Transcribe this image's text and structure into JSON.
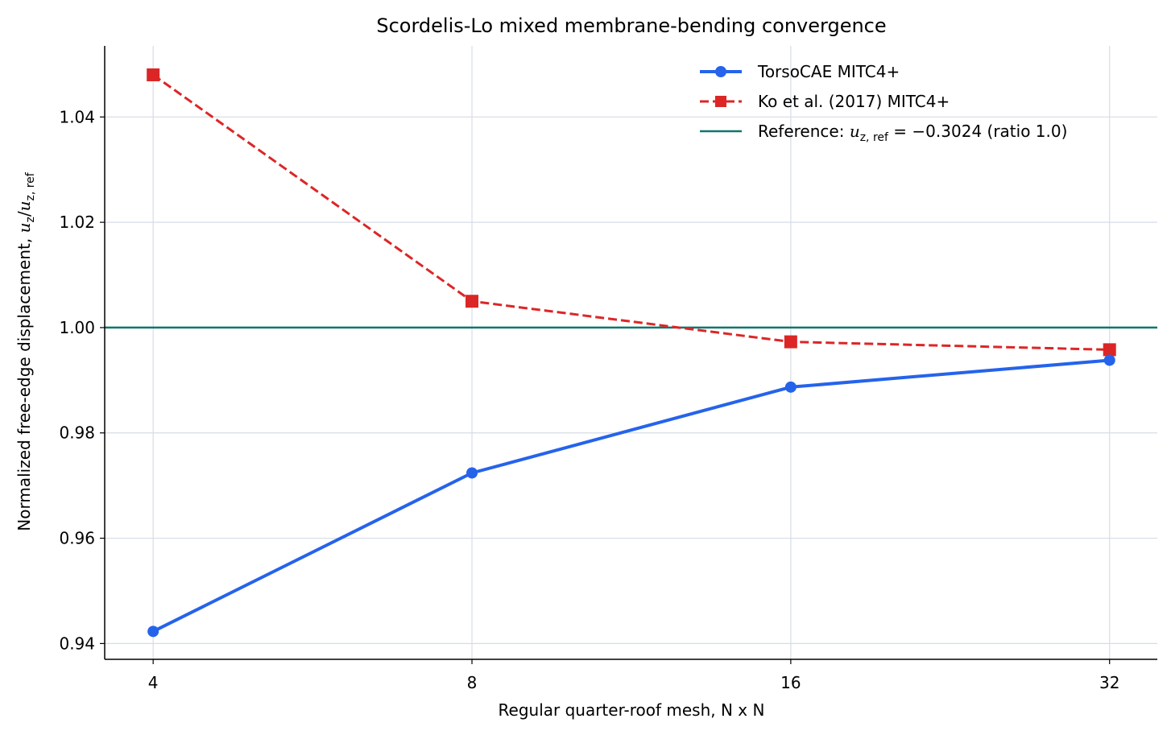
{
  "chart_data": {
    "type": "line",
    "title": "Scordelis-Lo mixed membrane-bending convergence",
    "xlabel": "Regular quarter-roof mesh, N x N",
    "ylabel": {
      "prefix": "Normalized free-edge displacement, ",
      "u": "u",
      "sub_z": "z",
      "slash": "/",
      "sub_zref": "z, ref"
    },
    "x_scale": "log2",
    "categories": [
      "4",
      "8",
      "16",
      "32"
    ],
    "x": [
      4,
      8,
      16,
      32
    ],
    "xlim": [
      3.6,
      35.5
    ],
    "ylim": [
      0.937,
      1.0535
    ],
    "yticks": [
      0.94,
      0.96,
      0.98,
      1.0,
      1.02,
      1.04
    ],
    "ytick_labels": [
      "0.94",
      "0.96",
      "0.98",
      "1.00",
      "1.02",
      "1.04"
    ],
    "grid": true,
    "legend_position": "top-right",
    "series": [
      {
        "name": "TorsoCAE MITC4+",
        "values": [
          0.9423,
          0.9724,
          0.9887,
          0.9938
        ],
        "color": "#2563eb",
        "line_style": "solid",
        "marker": "circle"
      },
      {
        "name": "Ko et al. (2017) MITC4+",
        "values": [
          1.048,
          1.005,
          0.9973,
          0.9958
        ],
        "color": "#dc2626",
        "line_style": "dashed",
        "marker": "square"
      }
    ],
    "reference": {
      "label_prefix": "Reference: ",
      "label_u": "u",
      "label_sub": "z, ref",
      "label_rest": " = −0.3024 (ratio 1.0)",
      "value": 1.0,
      "color": "#0f766e"
    },
    "grid_color": "#d5dde8"
  }
}
